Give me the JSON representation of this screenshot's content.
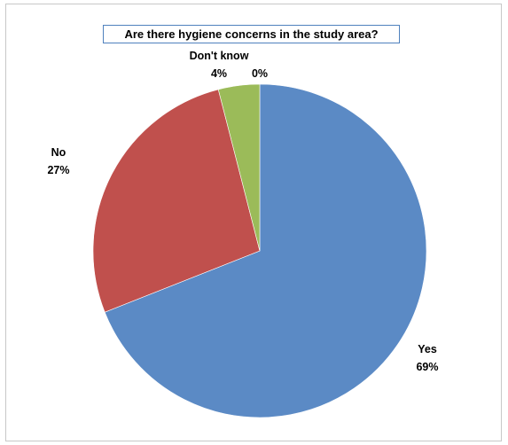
{
  "chart_data": {
    "type": "pie",
    "title": "Are there hygiene concerns in the study area?",
    "start_angle_deg": 0,
    "direction": "clockwise",
    "slices": [
      {
        "label": "Yes",
        "value_label": "69%",
        "value": 69,
        "color": "#5b8ac5"
      },
      {
        "label": "No",
        "value_label": "27%",
        "value": 27,
        "color": "#c0504d"
      },
      {
        "label": "Don't know",
        "value_label": "4%",
        "value": 4,
        "color": "#9bbb59"
      },
      {
        "label": "",
        "value_label": "0%",
        "value": 0,
        "color": "#8064a2"
      }
    ]
  }
}
